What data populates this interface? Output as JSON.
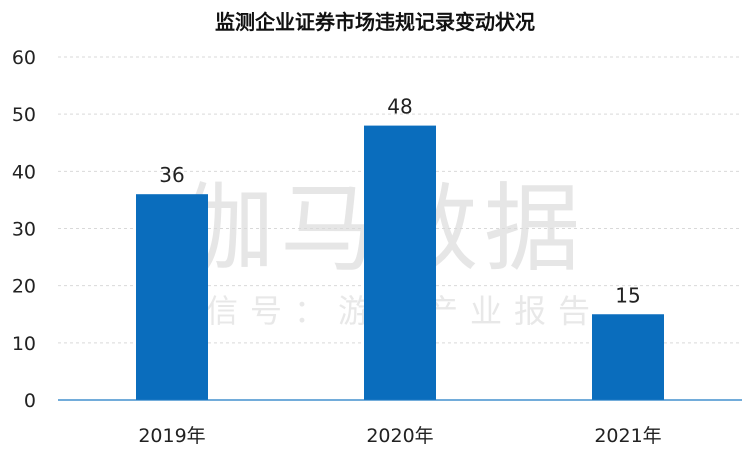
{
  "watermark": {
    "main": "伽马数据",
    "sub": "微信号：游戏产业报告"
  },
  "chart_data": {
    "type": "bar",
    "title": "监测企业证券市场违规记录变动状况",
    "categories": [
      "2019年",
      "2020年",
      "2021年"
    ],
    "values": [
      36,
      48,
      15
    ],
    "data_labels": [
      "36",
      "48",
      "15"
    ],
    "xlabel": "",
    "ylabel": "",
    "ylim": [
      0,
      60
    ],
    "yticks": [
      "0",
      "10",
      "20",
      "30",
      "40",
      "50",
      "60"
    ],
    "grid": true,
    "legend": "none",
    "bar_color": "#0a6dbd"
  }
}
